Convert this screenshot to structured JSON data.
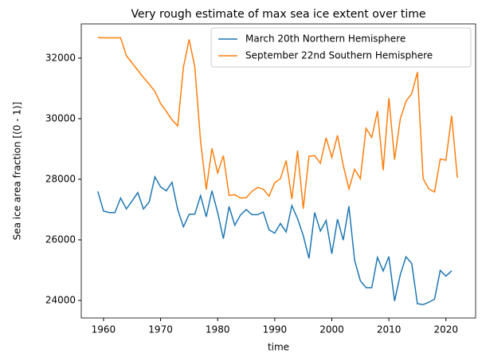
{
  "chart_data": {
    "type": "line",
    "title": "Very rough estimate of max sea ice extent over time",
    "x_label": "time",
    "y_label": "Sea ice area fraction [(0 - 1)]",
    "x": [
      1959,
      1960,
      1961,
      1962,
      1963,
      1964,
      1965,
      1966,
      1967,
      1968,
      1969,
      1970,
      1971,
      1972,
      1973,
      1974,
      1975,
      1976,
      1977,
      1978,
      1979,
      1980,
      1981,
      1982,
      1983,
      1984,
      1985,
      1986,
      1987,
      1988,
      1989,
      1990,
      1991,
      1992,
      1993,
      1994,
      1995,
      1996,
      1997,
      1998,
      1999,
      2000,
      2001,
      2002,
      2003,
      2004,
      2005,
      2006,
      2007,
      2008,
      2009,
      2010,
      2011,
      2012,
      2013,
      2014,
      2015,
      2016,
      2017,
      2018,
      2019,
      2020,
      2021,
      2022
    ],
    "series": [
      {
        "name": "March 20th Northern Hemisphere",
        "color": "#1f77b4",
        "values": [
          27600,
          26950,
          26900,
          26900,
          27380,
          27020,
          27280,
          27560,
          27020,
          27250,
          28080,
          27750,
          27620,
          27900,
          27000,
          26430,
          26840,
          26850,
          27460,
          26760,
          27620,
          26900,
          26040,
          27100,
          26480,
          26820,
          27000,
          26830,
          26830,
          26920,
          26330,
          26220,
          26540,
          26260,
          27130,
          26700,
          26140,
          25390,
          26900,
          26290,
          26640,
          25540,
          26680,
          25990,
          27110,
          25320,
          24650,
          24420,
          24420,
          25420,
          24970,
          25450,
          23980,
          24850,
          25440,
          25220,
          23890,
          23860,
          23940,
          24040,
          24990,
          24800,
          24980,
          null
        ]
      },
      {
        "name": "September 22nd Southern Hemisphere",
        "color": "#ff7f0e",
        "values": [
          32680,
          32670,
          32670,
          32670,
          32670,
          32080,
          31840,
          31600,
          31360,
          31140,
          30900,
          30500,
          30240,
          29960,
          29760,
          31700,
          32620,
          31700,
          29270,
          27660,
          29020,
          28210,
          28780,
          27470,
          27490,
          27380,
          27390,
          27600,
          27730,
          27670,
          27440,
          27890,
          28020,
          28620,
          27350,
          28940,
          27030,
          28760,
          28780,
          28530,
          29370,
          28720,
          29450,
          28460,
          27680,
          28330,
          28020,
          29680,
          29380,
          30250,
          28300,
          30680,
          28650,
          29990,
          30580,
          30820,
          31540,
          28020,
          27680,
          27580,
          28670,
          28630,
          30100,
          28050
        ]
      }
    ],
    "xlim": [
      1956.1,
      2025.2
    ],
    "xticks": [
      1960,
      1970,
      1980,
      1990,
      2000,
      2010,
      2020
    ],
    "ylim": [
      23420,
      33130
    ],
    "yticks": [
      24000,
      26000,
      28000,
      30000,
      32000
    ],
    "grid": false,
    "legend": "upper right"
  }
}
